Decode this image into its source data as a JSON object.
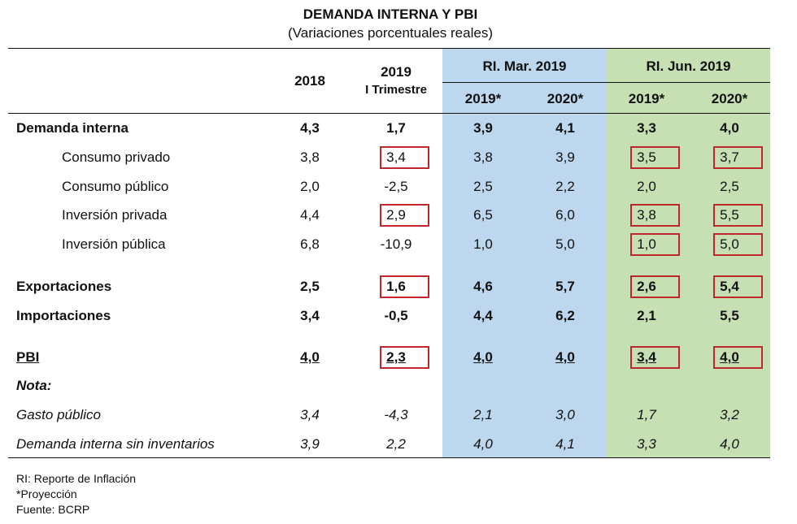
{
  "title": "DEMANDA INTERNA Y PBI",
  "subtitle": "(Variaciones porcentuales reales)",
  "header": {
    "col_2018": "2018",
    "col_2019": "2019",
    "col_2019_sub": "I Trimestre",
    "group_mar": "RI. Mar. 2019",
    "group_jun": "RI. Jun. 2019",
    "mar_2019": "2019*",
    "mar_2020": "2020*",
    "jun_2019": "2019*",
    "jun_2020": "2020*"
  },
  "rows": [
    {
      "label": "Demanda interna",
      "values": [
        "4,3",
        "1,7",
        "3,9",
        "4,1",
        "3,3",
        "4,0"
      ]
    },
    {
      "label": "Consumo privado",
      "values": [
        "3,8",
        "3,4",
        "3,8",
        "3,9",
        "3,5",
        "3,7"
      ]
    },
    {
      "label": "Consumo público",
      "values": [
        "2,0",
        "-2,5",
        "2,5",
        "2,2",
        "2,0",
        "2,5"
      ]
    },
    {
      "label": "Inversión privada",
      "values": [
        "4,4",
        "2,9",
        "6,5",
        "6,0",
        "3,8",
        "5,5"
      ]
    },
    {
      "label": "Inversión pública",
      "values": [
        "6,8",
        "-10,9",
        "1,0",
        "5,0",
        "1,0",
        "5,0"
      ]
    },
    {
      "label": "Exportaciones",
      "values": [
        "2,5",
        "1,6",
        "4,6",
        "5,7",
        "2,6",
        "5,4"
      ]
    },
    {
      "label": "Importaciones",
      "values": [
        "3,4",
        "-0,5",
        "4,4",
        "6,2",
        "2,1",
        "5,5"
      ]
    },
    {
      "label": "PBI",
      "values": [
        "4,0",
        "2,3",
        "4,0",
        "4,0",
        "3,4",
        "4,0"
      ]
    },
    {
      "label": "Nota:",
      "values": []
    },
    {
      "label": "Gasto público",
      "values": [
        "3,4",
        "-4,3",
        "2,1",
        "3,0",
        "1,7",
        "3,2"
      ]
    },
    {
      "label": "Demanda interna sin inventarios",
      "values": [
        "3,9",
        "2,2",
        "4,0",
        "4,1",
        "3,3",
        "4,0"
      ]
    }
  ],
  "footnotes": [
    "RI: Reporte de Inflación",
    "*Proyección",
    "Fuente: BCRP"
  ],
  "colors": {
    "mar_bg": "#bdd7ee",
    "jun_bg": "#c6e0b4",
    "highlight": "#c0272d"
  }
}
